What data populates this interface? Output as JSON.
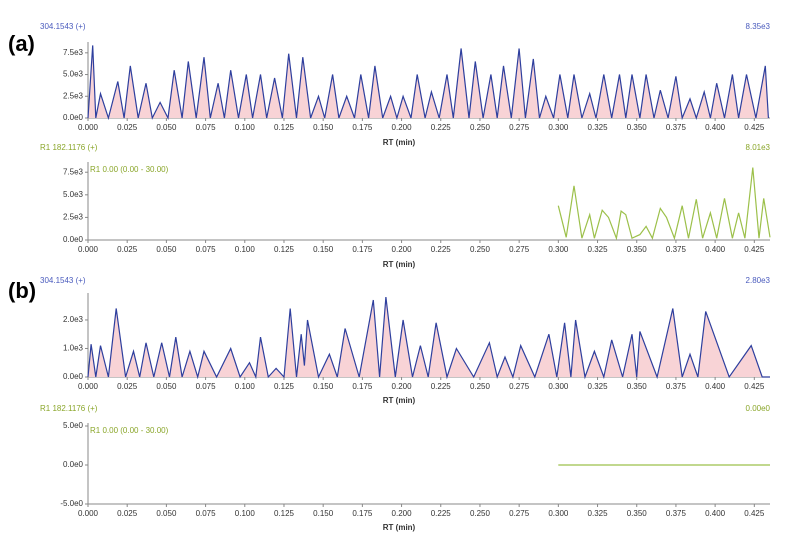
{
  "chart_data": [
    {
      "type": "line",
      "panel_label": "(a)",
      "title": "304.1543 (+)",
      "max_label": "8.35e3",
      "xlabel": "RT (min)",
      "color": "#2e3f9e",
      "fill_color": "#f8d3d6",
      "header_color": "#4a5bbd",
      "x": [
        0.0,
        0.003,
        0.005,
        0.008,
        0.013,
        0.019,
        0.023,
        0.027,
        0.032,
        0.037,
        0.041,
        0.046,
        0.051,
        0.055,
        0.06,
        0.064,
        0.069,
        0.074,
        0.078,
        0.083,
        0.087,
        0.091,
        0.096,
        0.101,
        0.105,
        0.11,
        0.114,
        0.119,
        0.124,
        0.128,
        0.133,
        0.137,
        0.142,
        0.147,
        0.151,
        0.156,
        0.16,
        0.165,
        0.17,
        0.174,
        0.179,
        0.183,
        0.188,
        0.193,
        0.197,
        0.201,
        0.206,
        0.21,
        0.215,
        0.219,
        0.224,
        0.229,
        0.233,
        0.238,
        0.243,
        0.247,
        0.252,
        0.257,
        0.261,
        0.265,
        0.27,
        0.275,
        0.279,
        0.284,
        0.288,
        0.292,
        0.297,
        0.301,
        0.306,
        0.31,
        0.315,
        0.32,
        0.324,
        0.329,
        0.334,
        0.339,
        0.343,
        0.347,
        0.352,
        0.356,
        0.361,
        0.365,
        0.37,
        0.375,
        0.379,
        0.384,
        0.388,
        0.393,
        0.397,
        0.401,
        0.406,
        0.411,
        0.415,
        0.42,
        0.426,
        0.432,
        0.434
      ],
      "values": [
        0,
        8350,
        0,
        2800,
        0,
        4200,
        0,
        6000,
        0,
        4000,
        0,
        1800,
        0,
        5500,
        0,
        6500,
        0,
        7000,
        0,
        4000,
        0,
        5500,
        0,
        5000,
        0,
        5000,
        0,
        4600,
        0,
        7400,
        0,
        7000,
        0,
        2500,
        0,
        5000,
        0,
        2500,
        0,
        5000,
        0,
        6000,
        0,
        2500,
        0,
        2500,
        0,
        5000,
        0,
        3000,
        0,
        5000,
        0,
        8000,
        0,
        6500,
        0,
        5000,
        0,
        6000,
        0,
        8000,
        0,
        6800,
        0,
        2500,
        0,
        5000,
        0,
        5000,
        0,
        2800,
        0,
        5000,
        0,
        5000,
        0,
        5000,
        0,
        5000,
        0,
        3200,
        0,
        4800,
        0,
        2200,
        0,
        3000,
        0,
        4000,
        0,
        5000,
        0,
        5000,
        0,
        6000,
        0
      ],
      "xlim": [
        0,
        0.435
      ],
      "ylim": [
        0,
        8400
      ],
      "yticks": [
        {
          "value": 0,
          "label": "0.0e0"
        },
        {
          "value": 2500,
          "label": "2.5e3"
        },
        {
          "value": 5000,
          "label": "5.0e3"
        },
        {
          "value": 7500,
          "label": "7.5e3"
        }
      ],
      "xticks": [
        {
          "value": 0,
          "label": "0.000"
        },
        {
          "value": 0.025,
          "label": "0.025"
        },
        {
          "value": 0.05,
          "label": "0.050"
        },
        {
          "value": 0.075,
          "label": "0.075"
        },
        {
          "value": 0.1,
          "label": "0.100"
        },
        {
          "value": 0.125,
          "label": "0.125"
        },
        {
          "value": 0.15,
          "label": "0.150"
        },
        {
          "value": 0.175,
          "label": "0.175"
        },
        {
          "value": 0.2,
          "label": "0.200"
        },
        {
          "value": 0.225,
          "label": "0.225"
        },
        {
          "value": 0.25,
          "label": "0.250"
        },
        {
          "value": 0.275,
          "label": "0.275"
        },
        {
          "value": 0.3,
          "label": "0.300"
        },
        {
          "value": 0.325,
          "label": "0.325"
        },
        {
          "value": 0.35,
          "label": "0.350"
        },
        {
          "value": 0.375,
          "label": "0.375"
        },
        {
          "value": 0.4,
          "label": "0.400"
        },
        {
          "value": 0.425,
          "label": "0.425"
        }
      ]
    },
    {
      "type": "line",
      "title": "R1 182.1176 (+)",
      "max_label": "8.01e3",
      "inner_label": "R1 0.00 (0.00 - 30.00)",
      "xlabel": "RT (min)",
      "color": "#9cc04a",
      "header_color": "#8aa62a",
      "x": [
        0.3,
        0.305,
        0.31,
        0.315,
        0.32,
        0.323,
        0.328,
        0.332,
        0.337,
        0.34,
        0.343,
        0.347,
        0.352,
        0.356,
        0.36,
        0.365,
        0.369,
        0.374,
        0.379,
        0.383,
        0.388,
        0.392,
        0.397,
        0.401,
        0.406,
        0.411,
        0.415,
        0.419,
        0.424,
        0.428,
        0.431,
        0.435
      ],
      "values": [
        3800,
        300,
        6000,
        200,
        2800,
        200,
        3300,
        2500,
        200,
        3200,
        2800,
        200,
        600,
        1500,
        200,
        3500,
        2500,
        200,
        3800,
        200,
        4500,
        200,
        3000,
        200,
        4600,
        200,
        3000,
        200,
        8010,
        200,
        4600,
        300
      ],
      "xlim": [
        0,
        0.435
      ],
      "ylim": [
        0,
        8300
      ],
      "yticks": [
        {
          "value": 0,
          "label": "0.0e0"
        },
        {
          "value": 2500,
          "label": "2.5e3"
        },
        {
          "value": 5000,
          "label": "5.0e3"
        },
        {
          "value": 7500,
          "label": "7.5e3"
        }
      ],
      "xticks": [
        {
          "value": 0,
          "label": "0.000"
        },
        {
          "value": 0.025,
          "label": "0.025"
        },
        {
          "value": 0.05,
          "label": "0.050"
        },
        {
          "value": 0.075,
          "label": "0.075"
        },
        {
          "value": 0.1,
          "label": "0.100"
        },
        {
          "value": 0.125,
          "label": "0.125"
        },
        {
          "value": 0.15,
          "label": "0.150"
        },
        {
          "value": 0.175,
          "label": "0.175"
        },
        {
          "value": 0.2,
          "label": "0.200"
        },
        {
          "value": 0.225,
          "label": "0.225"
        },
        {
          "value": 0.25,
          "label": "0.250"
        },
        {
          "value": 0.275,
          "label": "0.275"
        },
        {
          "value": 0.3,
          "label": "0.300"
        },
        {
          "value": 0.325,
          "label": "0.325"
        },
        {
          "value": 0.35,
          "label": "0.350"
        },
        {
          "value": 0.375,
          "label": "0.375"
        },
        {
          "value": 0.4,
          "label": "0.400"
        },
        {
          "value": 0.425,
          "label": "0.425"
        }
      ]
    },
    {
      "type": "line",
      "panel_label": "(b)",
      "title": "304.1543 (+)",
      "max_label": "2.80e3",
      "xlabel": "RT (min)",
      "color": "#2e3f9e",
      "fill_color": "#f8d3d6",
      "header_color": "#4a5bbd",
      "x": [
        0.0,
        0.002,
        0.005,
        0.008,
        0.013,
        0.018,
        0.024,
        0.029,
        0.033,
        0.037,
        0.042,
        0.047,
        0.052,
        0.056,
        0.06,
        0.065,
        0.07,
        0.074,
        0.082,
        0.091,
        0.097,
        0.103,
        0.107,
        0.11,
        0.115,
        0.12,
        0.125,
        0.129,
        0.133,
        0.136,
        0.138,
        0.14,
        0.147,
        0.154,
        0.159,
        0.164,
        0.173,
        0.182,
        0.186,
        0.19,
        0.196,
        0.201,
        0.207,
        0.212,
        0.217,
        0.222,
        0.229,
        0.235,
        0.246,
        0.256,
        0.261,
        0.266,
        0.271,
        0.276,
        0.285,
        0.294,
        0.299,
        0.304,
        0.308,
        0.311,
        0.317,
        0.323,
        0.329,
        0.334,
        0.341,
        0.347,
        0.35,
        0.352,
        0.363,
        0.373,
        0.379,
        0.384,
        0.389,
        0.394,
        0.409,
        0.423,
        0.43,
        0.435
      ],
      "values": [
        0,
        1150,
        0,
        1100,
        0,
        2400,
        0,
        900,
        0,
        1200,
        0,
        1200,
        0,
        1400,
        0,
        900,
        0,
        900,
        0,
        1000,
        0,
        500,
        0,
        1400,
        0,
        300,
        0,
        2400,
        0,
        1500,
        400,
        2000,
        0,
        800,
        0,
        1700,
        0,
        2700,
        0,
        2800,
        0,
        2000,
        0,
        1100,
        0,
        1900,
        0,
        1000,
        0,
        1200,
        0,
        700,
        0,
        1100,
        0,
        1500,
        0,
        1900,
        0,
        2000,
        0,
        900,
        0,
        1300,
        0,
        1500,
        0,
        1600,
        0,
        2400,
        0,
        800,
        0,
        2300,
        0,
        1100,
        0,
        0
      ],
      "xlim": [
        0,
        0.435
      ],
      "ylim": [
        0,
        2840
      ],
      "yticks": [
        {
          "value": 0,
          "label": "0.0e0"
        },
        {
          "value": 1000,
          "label": "1.0e3"
        },
        {
          "value": 2000,
          "label": "2.0e3"
        }
      ],
      "xticks": [
        {
          "value": 0,
          "label": "0.000"
        },
        {
          "value": 0.025,
          "label": "0.025"
        },
        {
          "value": 0.05,
          "label": "0.050"
        },
        {
          "value": 0.075,
          "label": "0.075"
        },
        {
          "value": 0.1,
          "label": "0.100"
        },
        {
          "value": 0.125,
          "label": "0.125"
        },
        {
          "value": 0.15,
          "label": "0.150"
        },
        {
          "value": 0.175,
          "label": "0.175"
        },
        {
          "value": 0.2,
          "label": "0.200"
        },
        {
          "value": 0.225,
          "label": "0.225"
        },
        {
          "value": 0.25,
          "label": "0.250"
        },
        {
          "value": 0.275,
          "label": "0.275"
        },
        {
          "value": 0.3,
          "label": "0.300"
        },
        {
          "value": 0.325,
          "label": "0.325"
        },
        {
          "value": 0.35,
          "label": "0.350"
        },
        {
          "value": 0.375,
          "label": "0.375"
        },
        {
          "value": 0.4,
          "label": "0.400"
        },
        {
          "value": 0.425,
          "label": "0.425"
        }
      ]
    },
    {
      "type": "line",
      "title": "R1 182.1176 (+)",
      "max_label": "0.00e0",
      "inner_label": "R1 0.00 (0.00 - 30.00)",
      "xlabel": "RT (min)",
      "color": "#9cc04a",
      "header_color": "#8aa62a",
      "x": [
        0.3,
        0.435
      ],
      "values": [
        0,
        0
      ],
      "xlim": [
        0,
        0.435
      ],
      "ylim": [
        -5,
        5
      ],
      "yticks": [
        {
          "value": -5,
          "label": "-5.0e0"
        },
        {
          "value": 0,
          "label": "0.0e0"
        },
        {
          "value": 5,
          "label": "5.0e0"
        }
      ],
      "xticks": [
        {
          "value": 0,
          "label": "0.000"
        },
        {
          "value": 0.025,
          "label": "0.025"
        },
        {
          "value": 0.05,
          "label": "0.050"
        },
        {
          "value": 0.075,
          "label": "0.075"
        },
        {
          "value": 0.1,
          "label": "0.100"
        },
        {
          "value": 0.125,
          "label": "0.125"
        },
        {
          "value": 0.15,
          "label": "0.150"
        },
        {
          "value": 0.175,
          "label": "0.175"
        },
        {
          "value": 0.2,
          "label": "0.200"
        },
        {
          "value": 0.225,
          "label": "0.225"
        },
        {
          "value": 0.25,
          "label": "0.250"
        },
        {
          "value": 0.275,
          "label": "0.275"
        },
        {
          "value": 0.3,
          "label": "0.300"
        },
        {
          "value": 0.325,
          "label": "0.325"
        },
        {
          "value": 0.35,
          "label": "0.350"
        },
        {
          "value": 0.375,
          "label": "0.375"
        },
        {
          "value": 0.4,
          "label": "0.400"
        },
        {
          "value": 0.425,
          "label": "0.425"
        }
      ]
    }
  ]
}
